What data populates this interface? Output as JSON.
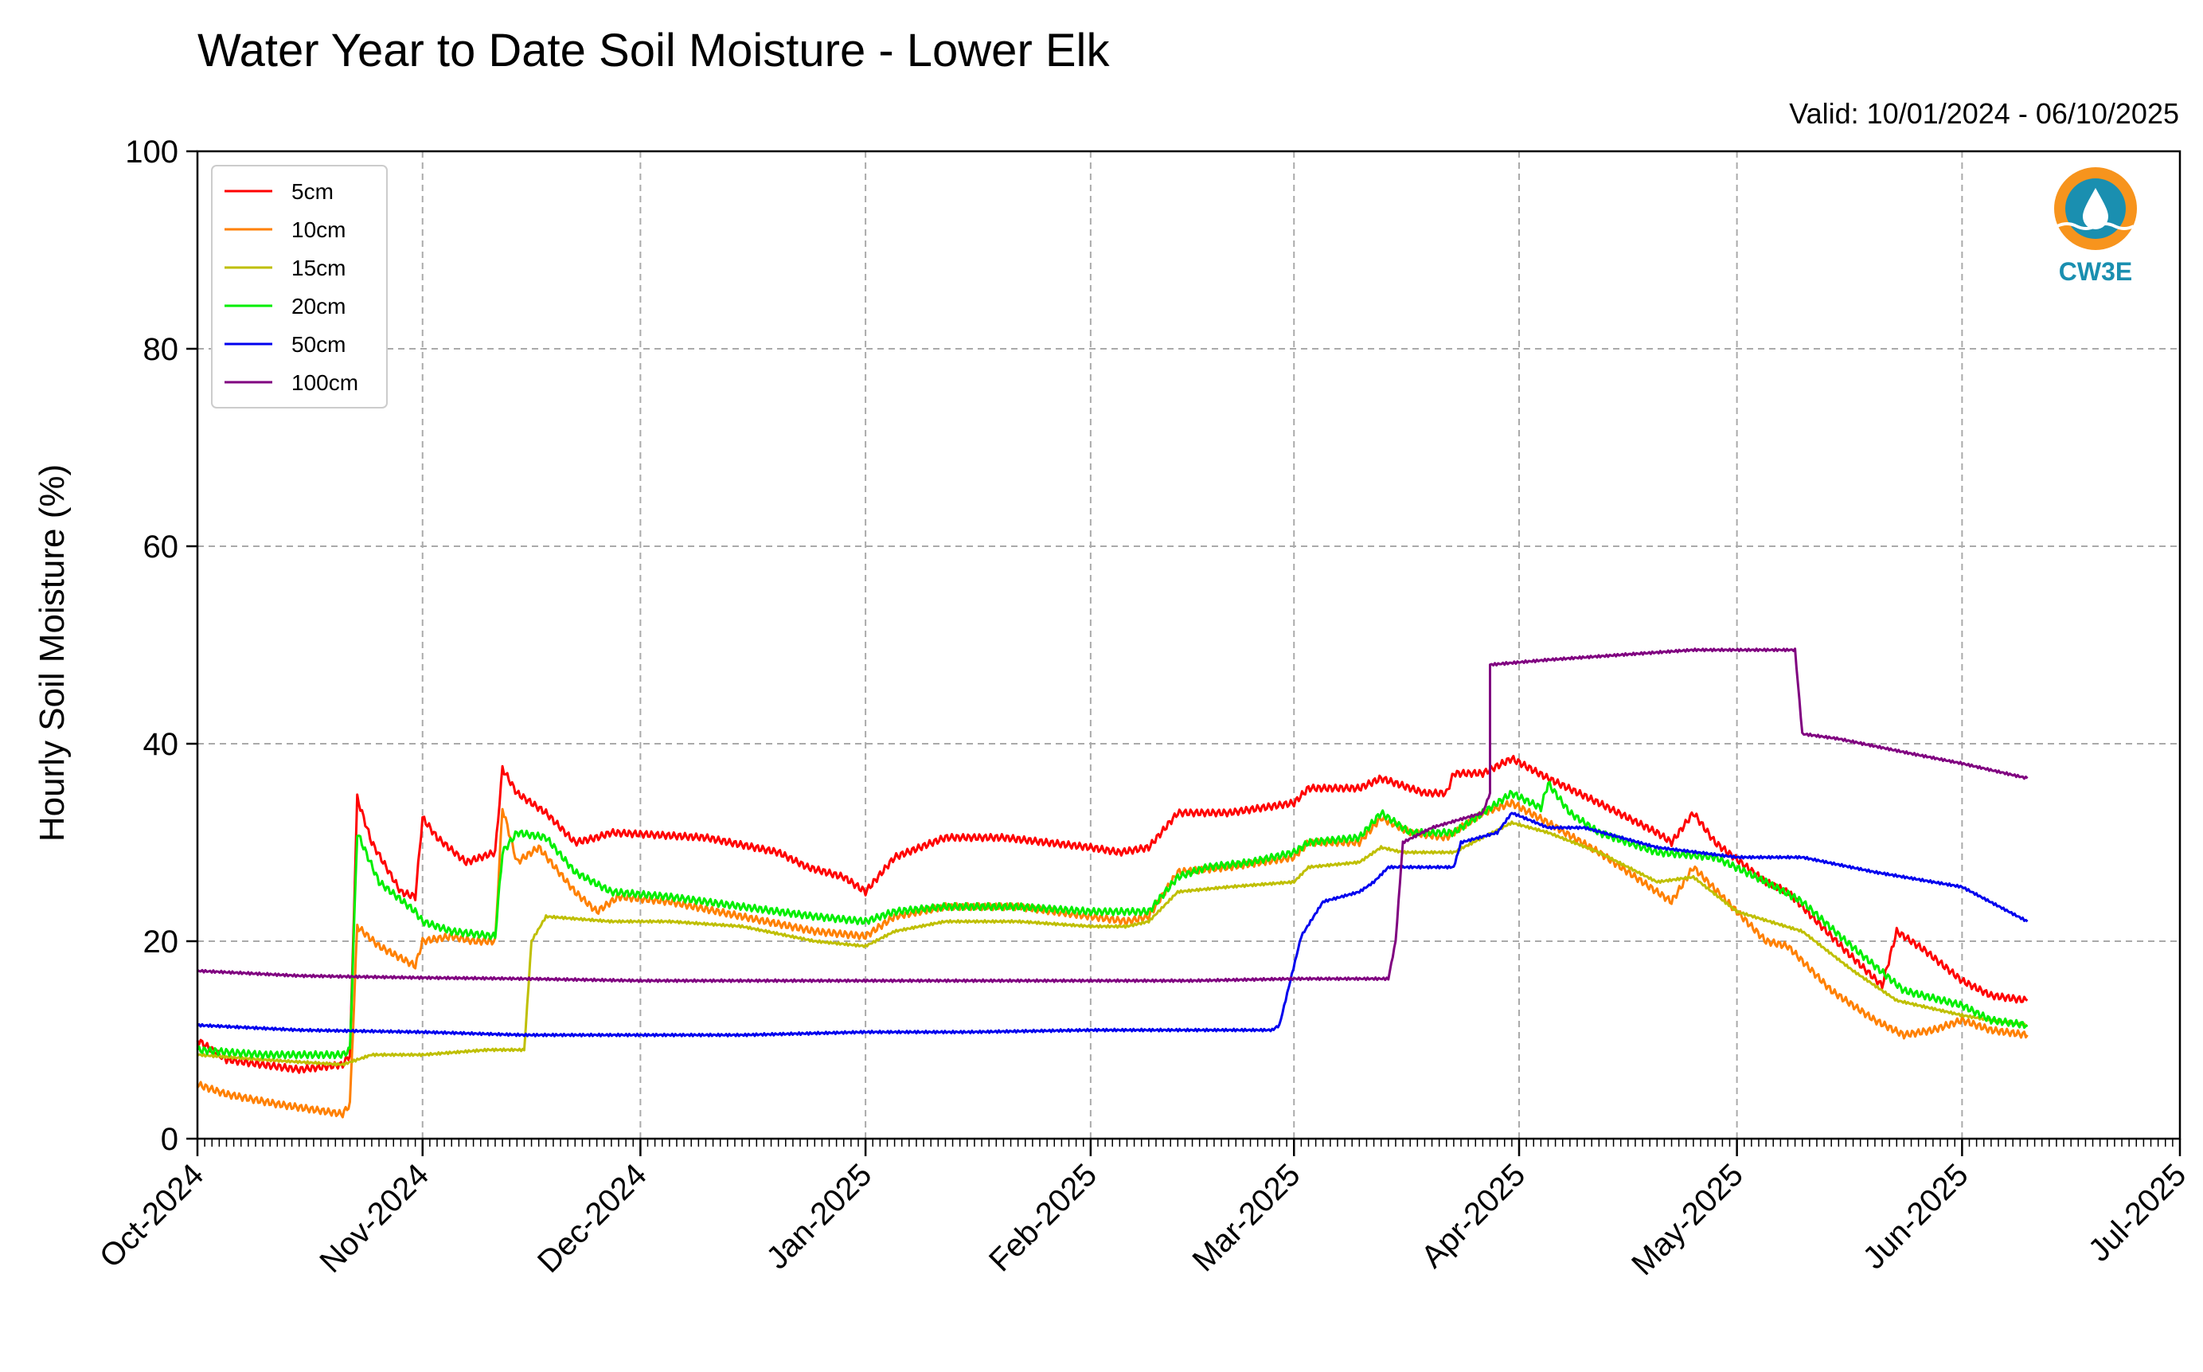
{
  "chart_data": {
    "type": "line",
    "title": "Water Year to Date Soil Moisture - Lower Elk",
    "subtitle": "Valid: 10/01/2024 - 06/10/2025",
    "ylabel": "Hourly Soil Moisture (%)",
    "xlabel": "",
    "ylim": [
      0,
      100
    ],
    "xlim": [
      "2024-10-01",
      "2025-07-01"
    ],
    "yticks": [
      "0",
      "20",
      "40",
      "60",
      "80",
      "100"
    ],
    "xticks": [
      {
        "date": "2024-10-01",
        "label": "Oct-2024"
      },
      {
        "date": "2024-11-01",
        "label": "Nov-2024"
      },
      {
        "date": "2024-12-01",
        "label": "Dec-2024"
      },
      {
        "date": "2025-01-01",
        "label": "Jan-2025"
      },
      {
        "date": "2025-02-01",
        "label": "Feb-2025"
      },
      {
        "date": "2025-03-01",
        "label": "Mar-2025"
      },
      {
        "date": "2025-04-01",
        "label": "Apr-2025"
      },
      {
        "date": "2025-05-01",
        "label": "May-2025"
      },
      {
        "date": "2025-06-01",
        "label": "Jun-2025"
      },
      {
        "date": "2025-07-01",
        "label": "Jul-2025"
      }
    ],
    "grid": true,
    "legend_position": "top-left",
    "logo_text": "CW3E",
    "series": [
      {
        "name": "5cm",
        "color": "#ff0000",
        "points": [
          [
            "2024-10-01",
            10.0
          ],
          [
            "2024-10-05",
            8.0
          ],
          [
            "2024-10-15",
            7.0
          ],
          [
            "2024-10-21",
            7.5
          ],
          [
            "2024-10-22",
            8.5
          ],
          [
            "2024-10-23",
            34.5
          ],
          [
            "2024-10-25",
            30.0
          ],
          [
            "2024-10-29",
            25.0
          ],
          [
            "2024-10-31",
            24.5
          ],
          [
            "2024-11-01",
            32.5
          ],
          [
            "2024-11-03",
            30.5
          ],
          [
            "2024-11-07",
            28.0
          ],
          [
            "2024-11-09",
            28.5
          ],
          [
            "2024-11-11",
            29.0
          ],
          [
            "2024-11-12",
            37.5
          ],
          [
            "2024-11-14",
            35.0
          ],
          [
            "2024-11-18",
            33.0
          ],
          [
            "2024-11-22",
            30.0
          ],
          [
            "2024-11-25",
            30.5
          ],
          [
            "2024-11-27",
            31.0
          ],
          [
            "2024-12-10",
            30.5
          ],
          [
            "2024-12-20",
            29.0
          ],
          [
            "2024-12-24",
            27.5
          ],
          [
            "2024-12-29",
            26.5
          ],
          [
            "2025-01-01",
            25.0
          ],
          [
            "2025-01-05",
            28.5
          ],
          [
            "2025-01-12",
            30.5
          ],
          [
            "2025-01-20",
            30.5
          ],
          [
            "2025-02-01",
            29.5
          ],
          [
            "2025-02-05",
            29.0
          ],
          [
            "2025-02-09",
            29.5
          ],
          [
            "2025-02-13",
            33.0
          ],
          [
            "2025-02-20",
            33.0
          ],
          [
            "2025-03-01",
            34.0
          ],
          [
            "2025-03-03",
            35.5
          ],
          [
            "2025-03-10",
            35.5
          ],
          [
            "2025-03-13",
            36.5
          ],
          [
            "2025-03-19",
            35.0
          ],
          [
            "2025-03-22",
            35.0
          ],
          [
            "2025-03-23",
            37.0
          ],
          [
            "2025-03-27",
            37.0
          ],
          [
            "2025-03-31",
            38.5
          ],
          [
            "2025-04-05",
            36.5
          ],
          [
            "2025-04-12",
            34.0
          ],
          [
            "2025-04-20",
            31.0
          ],
          [
            "2025-04-22",
            30.0
          ],
          [
            "2025-04-25",
            33.0
          ],
          [
            "2025-04-28",
            30.0
          ],
          [
            "2025-05-05",
            26.0
          ],
          [
            "2025-05-08",
            25.0
          ],
          [
            "2025-05-12",
            22.0
          ],
          [
            "2025-05-16",
            19.0
          ],
          [
            "2025-05-21",
            15.5
          ],
          [
            "2025-05-23",
            21.0
          ],
          [
            "2025-05-27",
            19.0
          ],
          [
            "2025-06-01",
            16.0
          ],
          [
            "2025-06-05",
            14.5
          ],
          [
            "2025-06-10",
            14.0
          ]
        ]
      },
      {
        "name": "10cm",
        "color": "#ff8000",
        "points": [
          [
            "2024-10-01",
            5.5
          ],
          [
            "2024-10-05",
            4.5
          ],
          [
            "2024-10-12",
            3.5
          ],
          [
            "2024-10-21",
            2.5
          ],
          [
            "2024-10-22",
            3.5
          ],
          [
            "2024-10-23",
            21.5
          ],
          [
            "2024-10-26",
            19.5
          ],
          [
            "2024-10-31",
            17.5
          ],
          [
            "2024-11-01",
            20.0
          ],
          [
            "2024-11-05",
            20.5
          ],
          [
            "2024-11-08",
            20.0
          ],
          [
            "2024-11-11",
            20.0
          ],
          [
            "2024-11-12",
            33.5
          ],
          [
            "2024-11-14",
            28.0
          ],
          [
            "2024-11-17",
            29.5
          ],
          [
            "2024-11-22",
            25.0
          ],
          [
            "2024-11-25",
            23.0
          ],
          [
            "2024-11-28",
            24.5
          ],
          [
            "2024-12-05",
            24.0
          ],
          [
            "2024-12-15",
            22.5
          ],
          [
            "2024-12-25",
            21.0
          ],
          [
            "2025-01-01",
            20.5
          ],
          [
            "2025-01-05",
            22.5
          ],
          [
            "2025-01-12",
            23.5
          ],
          [
            "2025-01-22",
            23.5
          ],
          [
            "2025-02-01",
            22.5
          ],
          [
            "2025-02-06",
            22.0
          ],
          [
            "2025-02-09",
            22.5
          ],
          [
            "2025-02-13",
            27.0
          ],
          [
            "2025-02-20",
            27.5
          ],
          [
            "2025-03-01",
            28.5
          ],
          [
            "2025-03-03",
            30.0
          ],
          [
            "2025-03-10",
            30.0
          ],
          [
            "2025-03-13",
            32.5
          ],
          [
            "2025-03-17",
            31.0
          ],
          [
            "2025-03-22",
            30.5
          ],
          [
            "2025-03-27",
            33.0
          ],
          [
            "2025-03-31",
            34.0
          ],
          [
            "2025-04-05",
            32.0
          ],
          [
            "2025-04-12",
            29.0
          ],
          [
            "2025-04-20",
            25.0
          ],
          [
            "2025-04-22",
            24.0
          ],
          [
            "2025-04-25",
            27.5
          ],
          [
            "2025-05-01",
            23.0
          ],
          [
            "2025-05-05",
            20.0
          ],
          [
            "2025-05-08",
            19.5
          ],
          [
            "2025-05-14",
            15.0
          ],
          [
            "2025-05-20",
            12.0
          ],
          [
            "2025-05-24",
            10.5
          ],
          [
            "2025-05-28",
            11.0
          ],
          [
            "2025-06-01",
            12.0
          ],
          [
            "2025-06-05",
            11.0
          ],
          [
            "2025-06-10",
            10.5
          ]
        ]
      },
      {
        "name": "15cm",
        "color": "#bfbf00",
        "points": [
          [
            "2024-10-01",
            8.5
          ],
          [
            "2024-10-10",
            8.0
          ],
          [
            "2024-10-21",
            7.5
          ],
          [
            "2024-10-25",
            8.5
          ],
          [
            "2024-11-01",
            8.5
          ],
          [
            "2024-11-10",
            9.0
          ],
          [
            "2024-11-15",
            9.0
          ],
          [
            "2024-11-16",
            20.0
          ],
          [
            "2024-11-18",
            22.5
          ],
          [
            "2024-11-27",
            22.0
          ],
          [
            "2024-12-05",
            22.0
          ],
          [
            "2024-12-15",
            21.5
          ],
          [
            "2024-12-25",
            20.0
          ],
          [
            "2025-01-01",
            19.5
          ],
          [
            "2025-01-05",
            21.0
          ],
          [
            "2025-01-12",
            22.0
          ],
          [
            "2025-01-22",
            22.0
          ],
          [
            "2025-02-01",
            21.5
          ],
          [
            "2025-02-06",
            21.5
          ],
          [
            "2025-02-09",
            22.0
          ],
          [
            "2025-02-13",
            25.0
          ],
          [
            "2025-02-20",
            25.5
          ],
          [
            "2025-03-01",
            26.0
          ],
          [
            "2025-03-03",
            27.5
          ],
          [
            "2025-03-10",
            28.0
          ],
          [
            "2025-03-13",
            29.5
          ],
          [
            "2025-03-16",
            29.0
          ],
          [
            "2025-03-23",
            29.0
          ],
          [
            "2025-03-31",
            32.0
          ],
          [
            "2025-04-05",
            31.0
          ],
          [
            "2025-04-12",
            29.0
          ],
          [
            "2025-04-20",
            26.0
          ],
          [
            "2025-04-25",
            26.5
          ],
          [
            "2025-05-01",
            23.0
          ],
          [
            "2025-05-10",
            21.0
          ],
          [
            "2025-05-17",
            17.0
          ],
          [
            "2025-05-23",
            14.0
          ],
          [
            "2025-06-01",
            12.5
          ],
          [
            "2025-06-05",
            12.0
          ],
          [
            "2025-06-10",
            11.5
          ]
        ]
      },
      {
        "name": "20cm",
        "color": "#00ee00",
        "points": [
          [
            "2024-10-01",
            9.0
          ],
          [
            "2024-10-10",
            8.5
          ],
          [
            "2024-10-21",
            8.5
          ],
          [
            "2024-10-22",
            9.0
          ],
          [
            "2024-10-23",
            31.0
          ],
          [
            "2024-10-26",
            26.0
          ],
          [
            "2024-10-31",
            23.0
          ],
          [
            "2024-11-01",
            22.0
          ],
          [
            "2024-11-05",
            21.0
          ],
          [
            "2024-11-11",
            20.5
          ],
          [
            "2024-11-12",
            29.0
          ],
          [
            "2024-11-14",
            31.0
          ],
          [
            "2024-11-18",
            30.5
          ],
          [
            "2024-11-22",
            27.0
          ],
          [
            "2024-11-27",
            25.0
          ],
          [
            "2024-12-05",
            24.5
          ],
          [
            "2024-12-15",
            23.5
          ],
          [
            "2024-12-25",
            22.5
          ],
          [
            "2025-01-01",
            22.0
          ],
          [
            "2025-01-05",
            23.0
          ],
          [
            "2025-01-12",
            23.5
          ],
          [
            "2025-01-22",
            23.5
          ],
          [
            "2025-02-01",
            23.0
          ],
          [
            "2025-02-09",
            23.0
          ],
          [
            "2025-02-13",
            26.5
          ],
          [
            "2025-02-17",
            27.5
          ],
          [
            "2025-02-23",
            28.0
          ],
          [
            "2025-03-01",
            29.0
          ],
          [
            "2025-03-03",
            30.0
          ],
          [
            "2025-03-10",
            30.5
          ],
          [
            "2025-03-13",
            33.0
          ],
          [
            "2025-03-17",
            31.0
          ],
          [
            "2025-03-23",
            31.0
          ],
          [
            "2025-03-31",
            35.0
          ],
          [
            "2025-04-04",
            33.5
          ],
          [
            "2025-04-05",
            36.0
          ],
          [
            "2025-04-08",
            33.0
          ],
          [
            "2025-04-12",
            31.0
          ],
          [
            "2025-04-20",
            29.0
          ],
          [
            "2025-04-28",
            28.5
          ],
          [
            "2025-05-05",
            26.0
          ],
          [
            "2025-05-10",
            24.0
          ],
          [
            "2025-05-16",
            20.0
          ],
          [
            "2025-05-20",
            17.5
          ],
          [
            "2025-05-24",
            15.0
          ],
          [
            "2025-06-01",
            13.5
          ],
          [
            "2025-06-05",
            12.0
          ],
          [
            "2025-06-10",
            11.5
          ]
        ]
      },
      {
        "name": "50cm",
        "color": "#0000ee",
        "points": [
          [
            "2024-10-01",
            11.5
          ],
          [
            "2024-10-15",
            11.0
          ],
          [
            "2024-11-01",
            10.8
          ],
          [
            "2024-11-15",
            10.5
          ],
          [
            "2024-12-01",
            10.5
          ],
          [
            "2024-12-15",
            10.5
          ],
          [
            "2025-01-01",
            10.8
          ],
          [
            "2025-01-15",
            10.8
          ],
          [
            "2025-02-01",
            11.0
          ],
          [
            "2025-02-15",
            11.0
          ],
          [
            "2025-02-26",
            11.0
          ],
          [
            "2025-02-27",
            11.5
          ],
          [
            "2025-03-02",
            20.5
          ],
          [
            "2025-03-05",
            24.0
          ],
          [
            "2025-03-10",
            25.0
          ],
          [
            "2025-03-12",
            26.0
          ],
          [
            "2025-03-14",
            27.5
          ],
          [
            "2025-03-23",
            27.5
          ],
          [
            "2025-03-24",
            30.0
          ],
          [
            "2025-03-29",
            31.0
          ],
          [
            "2025-03-31",
            33.0
          ],
          [
            "2025-04-05",
            31.5
          ],
          [
            "2025-04-10",
            31.5
          ],
          [
            "2025-04-20",
            29.5
          ],
          [
            "2025-05-01",
            28.5
          ],
          [
            "2025-05-10",
            28.5
          ],
          [
            "2025-05-20",
            27.0
          ],
          [
            "2025-06-01",
            25.5
          ],
          [
            "2025-06-10",
            22.0
          ]
        ]
      },
      {
        "name": "100cm",
        "color": "#800080",
        "points": [
          [
            "2024-10-01",
            17.0
          ],
          [
            "2024-10-15",
            16.5
          ],
          [
            "2024-11-01",
            16.3
          ],
          [
            "2024-11-15",
            16.2
          ],
          [
            "2024-12-01",
            16.0
          ],
          [
            "2024-12-15",
            16.0
          ],
          [
            "2025-01-01",
            16.0
          ],
          [
            "2025-01-15",
            16.0
          ],
          [
            "2025-02-01",
            16.0
          ],
          [
            "2025-02-15",
            16.0
          ],
          [
            "2025-03-01",
            16.2
          ],
          [
            "2025-03-14",
            16.2
          ],
          [
            "2025-03-15",
            20.0
          ],
          [
            "2025-03-16",
            30.0
          ],
          [
            "2025-03-20",
            31.5
          ],
          [
            "2025-03-27",
            33.0
          ],
          [
            "2025-03-28",
            35.0
          ],
          [
            "2025-03-28",
            48.0
          ],
          [
            "2025-04-05",
            48.5
          ],
          [
            "2025-04-15",
            49.0
          ],
          [
            "2025-04-25",
            49.5
          ],
          [
            "2025-05-05",
            49.5
          ],
          [
            "2025-05-09",
            49.5
          ],
          [
            "2025-05-10",
            41.0
          ],
          [
            "2025-05-15",
            40.5
          ],
          [
            "2025-05-25",
            39.0
          ],
          [
            "2025-06-01",
            38.0
          ],
          [
            "2025-06-10",
            36.5
          ]
        ]
      }
    ]
  }
}
